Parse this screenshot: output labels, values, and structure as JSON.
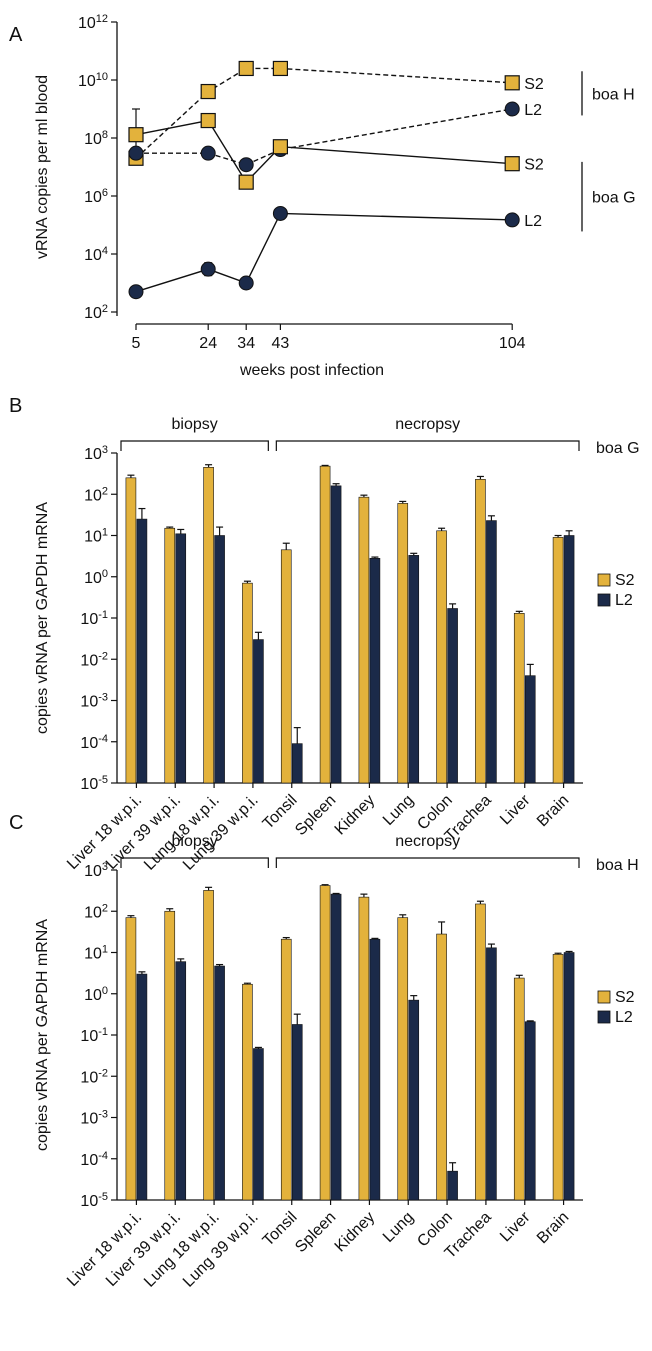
{
  "colors": {
    "S2": "#E3B23C",
    "L2": "#1B2A49",
    "axis": "#111111"
  },
  "chart_data": [
    {
      "panel": "A",
      "type": "line",
      "xlabel": "weeks post infection",
      "ylabel": "vRNA copies per ml blood",
      "x": [
        5,
        24,
        34,
        43,
        104
      ],
      "x_ticks": [
        "5",
        "24",
        "34",
        "43",
        "104"
      ],
      "y_scale": "log",
      "y_ticks": [
        {
          "base": "10",
          "exp": "2"
        },
        {
          "base": "10",
          "exp": "4"
        },
        {
          "base": "10",
          "exp": "6"
        },
        {
          "base": "10",
          "exp": "8"
        },
        {
          "base": "10",
          "exp": "10"
        },
        {
          "base": "10",
          "exp": "12"
        }
      ],
      "series": [
        {
          "name": "S2",
          "group": "boa H",
          "marker": "square",
          "dash": true,
          "values": [
            20000000.0,
            4000000000.0,
            25000000000.0,
            25000000000.0,
            8000000000.0
          ]
        },
        {
          "name": "L2",
          "group": "boa H",
          "marker": "circle",
          "dash": true,
          "values": [
            30000000.0,
            30000000.0,
            12000000.0,
            40000000.0,
            1000000000.0
          ]
        },
        {
          "name": "S2",
          "group": "boa G",
          "marker": "square",
          "dash": false,
          "values": [
            130000000.0,
            400000000.0,
            3000000.0,
            50000000.0,
            13000000.0
          ],
          "err": [
            1000000000.0,
            null,
            null,
            null,
            null
          ]
        },
        {
          "name": "L2",
          "group": "boa G",
          "marker": "circle",
          "dash": false,
          "values": [
            500,
            3000,
            1000,
            250000.0,
            150000.0
          ],
          "err": [
            null,
            5000,
            null,
            null,
            null
          ]
        }
      ],
      "groups": [
        "boa H",
        "boa G"
      ]
    },
    {
      "panel": "B",
      "type": "bar",
      "animal": "boa G",
      "ylabel": "copies vRNA per GAPDH mRNA",
      "y_scale": "log",
      "y_ticks": [
        {
          "base": "10",
          "exp": "-5"
        },
        {
          "base": "10",
          "exp": "-4"
        },
        {
          "base": "10",
          "exp": "-3"
        },
        {
          "base": "10",
          "exp": "-2"
        },
        {
          "base": "10",
          "exp": "-1"
        },
        {
          "base": "10",
          "exp": "0"
        },
        {
          "base": "10",
          "exp": "1"
        },
        {
          "base": "10",
          "exp": "2"
        },
        {
          "base": "10",
          "exp": "3"
        }
      ],
      "brackets": [
        {
          "label": "biopsy",
          "from": 0,
          "to": 3
        },
        {
          "label": "necropsy",
          "from": 4,
          "to": 11
        }
      ],
      "categories": [
        "Liver 18 w.p.i.",
        "Liver 39 w.p.i.",
        "Lung 18 w.p.i.",
        "Lung 39 w.p.i.",
        "Tonsil",
        "Spleen",
        "Kidney",
        "Lung",
        "Colon",
        "Trachea",
        "Liver",
        "Brain"
      ],
      "series": [
        {
          "name": "S2",
          "values": [
            250,
            15,
            450,
            0.7,
            4.5,
            480,
            85,
            60,
            13,
            230,
            0.13,
            9
          ],
          "err": [
            290,
            16,
            520,
            0.78,
            6.5,
            500,
            95,
            67,
            15,
            270,
            0.145,
            10
          ]
        },
        {
          "name": "L2",
          "values": [
            25,
            11,
            10,
            0.03,
            9e-05,
            160,
            2.8,
            3.3,
            0.17,
            23,
            0.004,
            10
          ],
          "err": [
            45,
            14,
            16,
            0.045,
            0.00022,
            180,
            3,
            3.7,
            0.22,
            30,
            0.0075,
            13
          ]
        }
      ]
    },
    {
      "panel": "C",
      "type": "bar",
      "animal": "boa H",
      "ylabel": "copies vRNA per GAPDH mRNA",
      "y_scale": "log",
      "y_ticks": [
        {
          "base": "10",
          "exp": "-5"
        },
        {
          "base": "10",
          "exp": "-4"
        },
        {
          "base": "10",
          "exp": "-3"
        },
        {
          "base": "10",
          "exp": "-2"
        },
        {
          "base": "10",
          "exp": "-1"
        },
        {
          "base": "10",
          "exp": "0"
        },
        {
          "base": "10",
          "exp": "1"
        },
        {
          "base": "10",
          "exp": "2"
        },
        {
          "base": "10",
          "exp": "3"
        }
      ],
      "brackets": [
        {
          "label": "biopsy",
          "from": 0,
          "to": 3
        },
        {
          "label": "necropsy",
          "from": 4,
          "to": 11
        }
      ],
      "categories": [
        "Liver 18 w.p.i.",
        "Liver 39 w.p.i.",
        "Lung 18 w.p.i.",
        "Lung 39 w.p.i.",
        "Tonsil",
        "Spleen",
        "Kidney",
        "Lung",
        "Colon",
        "Trachea",
        "Liver",
        "Brain"
      ],
      "series": [
        {
          "name": "S2",
          "values": [
            70,
            100,
            320,
            1.7,
            21,
            420,
            220,
            70,
            28,
            150,
            2.4,
            9
          ],
          "err": [
            78,
            115,
            380,
            1.8,
            23,
            440,
            260,
            82,
            55,
            175,
            2.8,
            9.6
          ]
        },
        {
          "name": "L2",
          "values": [
            3,
            6,
            4.7,
            0.047,
            0.18,
            260,
            21,
            0.7,
            5e-05,
            13,
            0.21,
            10
          ],
          "err": [
            3.4,
            7,
            5.1,
            0.05,
            0.32,
            270,
            22,
            0.9,
            8e-05,
            16,
            0.22,
            10.6
          ]
        }
      ]
    }
  ],
  "panel_labels": [
    "A",
    "B",
    "C"
  ]
}
